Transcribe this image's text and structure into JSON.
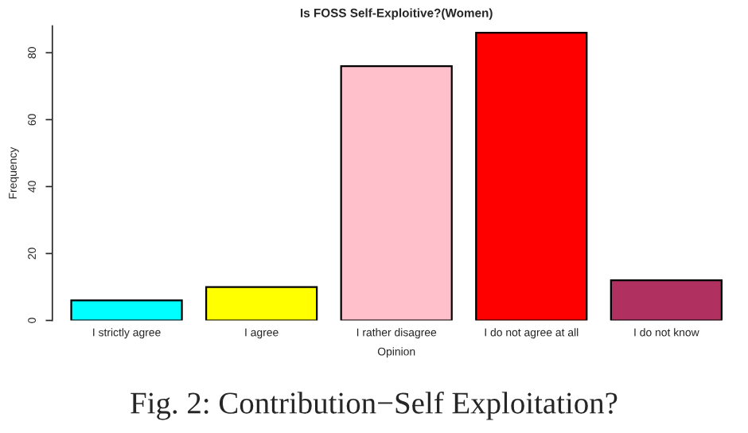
{
  "chart_data": {
    "type": "bar",
    "title": "Is FOSS Self-Exploitive?(Women)",
    "xlabel": "Opinion",
    "ylabel": "Frequency",
    "categories": [
      "I strictly agree",
      "I agree",
      "I rather disagree",
      "I do not agree at all",
      "I do not know"
    ],
    "values": [
      6,
      10,
      76,
      86,
      12
    ],
    "colors": [
      "#00ffff",
      "#ffff00",
      "#ffc0cb",
      "#ff0000",
      "#b03060"
    ],
    "ylim": [
      0,
      88
    ],
    "yticks": [
      0,
      20,
      40,
      60,
      80
    ],
    "grid": false,
    "annotations": [
      "Fig. 2: Contribution−Self Exploitation?"
    ]
  }
}
